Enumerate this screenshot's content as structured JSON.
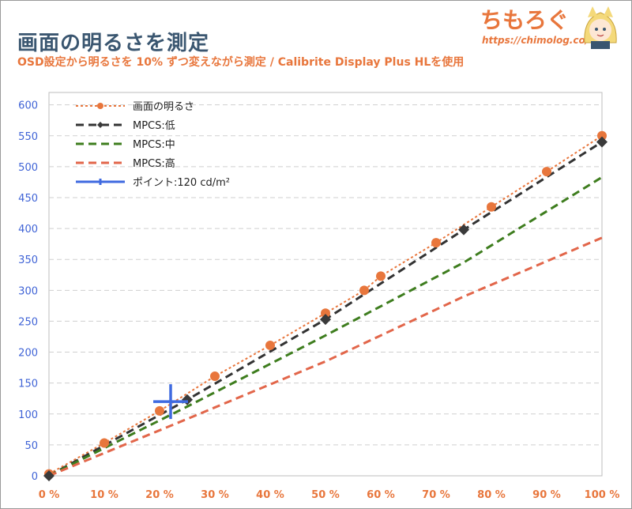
{
  "header": {
    "title": "画面の明るさを測定",
    "subtitle": "OSD設定から明るさを 10% ずつ変えながら測定 / Calibrite Display Plus HLを使用",
    "brand": "ちもろぐ",
    "brand_url": "https://chimolog.co/"
  },
  "chart_data": {
    "type": "line",
    "xlim": [
      0,
      100
    ],
    "ylim": [
      0,
      620
    ],
    "x_ticks": [
      0,
      10,
      20,
      30,
      40,
      50,
      60,
      70,
      80,
      90,
      100
    ],
    "x_tick_labels": [
      "0 %",
      "10 %",
      "20 %",
      "30 %",
      "40 %",
      "50 %",
      "60 %",
      "70 %",
      "80 %",
      "90 %",
      "100 %"
    ],
    "y_ticks": [
      0,
      50,
      100,
      150,
      200,
      250,
      300,
      350,
      400,
      450,
      500,
      550,
      600
    ],
    "y_tick_labels": [
      "0",
      "50",
      "100",
      "150",
      "200",
      "250",
      "300",
      "350",
      "400",
      "450",
      "500",
      "550",
      "600"
    ],
    "grid": true,
    "legend_position": "top-left",
    "series": [
      {
        "name": "画面の明るさ",
        "color": "#e8763c",
        "style": "dotted",
        "marker": "circle",
        "x": [
          0,
          10,
          20,
          30,
          40,
          50,
          57,
          60,
          70,
          80,
          90,
          100
        ],
        "y": [
          3,
          53,
          105,
          161,
          211,
          263,
          300,
          323,
          377,
          435,
          492,
          550
        ]
      },
      {
        "name": "MPCS:低",
        "color": "#333333",
        "style": "dashed",
        "marker": "diamond",
        "x": [
          0,
          25,
          50,
          75,
          100
        ],
        "y": [
          0,
          123,
          253,
          398,
          540
        ]
      },
      {
        "name": "MPCS:中",
        "color": "#3e7d1e",
        "style": "dashed",
        "marker": "none",
        "x": [
          0,
          25,
          50,
          75,
          100
        ],
        "y": [
          0,
          112,
          227,
          345,
          483
        ]
      },
      {
        "name": "MPCS:高",
        "color": "#e2664a",
        "style": "dashed",
        "marker": "none",
        "x": [
          0,
          25,
          50,
          75,
          100
        ],
        "y": [
          0,
          92,
          185,
          290,
          385
        ]
      },
      {
        "name": "ポイント:120 cd/m²",
        "color": "#3f6ae0",
        "style": "solid",
        "marker": "cross",
        "x": [
          22
        ],
        "y": [
          120
        ]
      }
    ]
  }
}
